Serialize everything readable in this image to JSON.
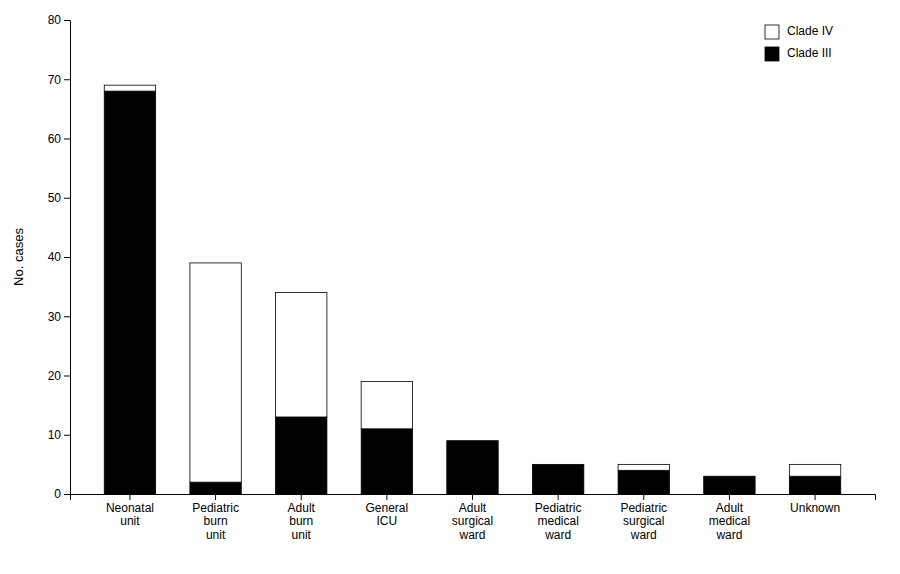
{
  "chart_data": {
    "type": "bar",
    "stacked": true,
    "categories": [
      "Neonatal\nunit",
      "Pediatric\nburn\nunit",
      "Adult\nburn\nunit",
      "General\nICU",
      "Adult\nsurgical\nward",
      "Pediatric\nmedical\nward",
      "Pediatric\nsurgical\nward",
      "Adult\nmedical\nward",
      "Unknown"
    ],
    "series": [
      {
        "name": "Clade III",
        "color": "#000000",
        "values": [
          68,
          2,
          13,
          11,
          9,
          5,
          4,
          3,
          3
        ]
      },
      {
        "name": "Clade IV",
        "color": "#ffffff",
        "values": [
          1,
          37,
          21,
          8,
          0,
          0,
          1,
          0,
          2
        ]
      }
    ],
    "ylabel": "No. cases",
    "ylim": [
      0,
      80
    ],
    "yticks": [
      0,
      10,
      20,
      30,
      40,
      50,
      60,
      70,
      80
    ],
    "grid": false,
    "legend": "upper right"
  }
}
